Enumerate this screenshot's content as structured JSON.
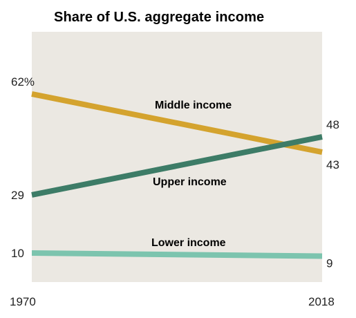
{
  "chart_data": {
    "type": "line",
    "title": "Share of U.S. aggregate income",
    "xlabel": "",
    "ylabel": "",
    "x": [
      1970,
      2018
    ],
    "x_tick_labels": [
      "1970",
      "2018"
    ],
    "ylim": [
      0,
      68
    ],
    "grid": false,
    "series": [
      {
        "name": "Middle income",
        "values": [
          62,
          43
        ],
        "start_label": "62%",
        "end_label": "43",
        "color": "#d4a32e"
      },
      {
        "name": "Upper income",
        "values": [
          29,
          48
        ],
        "start_label": "29",
        "end_label": "48",
        "color": "#3d7c67"
      },
      {
        "name": "Lower income",
        "values": [
          10,
          9
        ],
        "start_label": "10",
        "end_label": "9",
        "color": "#7cc4ae"
      }
    ],
    "plot_background": "#ebe8e2"
  }
}
